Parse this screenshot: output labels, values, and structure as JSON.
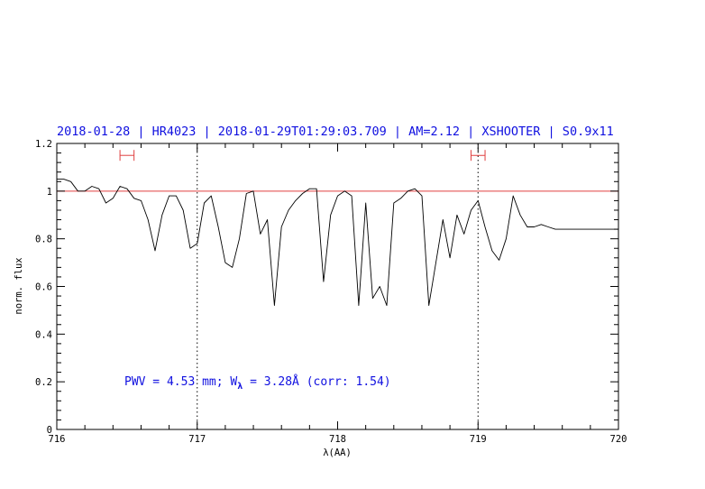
{
  "chart_data": {
    "type": "line",
    "title": "2018-01-28 | HR4023 | 2018-01-29T01:29:03.709 | AM=2.12 | XSHOOTER | S0.9x11",
    "xlabel": "λ(AA)",
    "ylabel": "norm. flux",
    "xlim": [
      716,
      720
    ],
    "ylim": [
      0,
      1.2
    ],
    "x_ticks": [
      716,
      717,
      718,
      719,
      720
    ],
    "y_ticks": [
      0,
      0.2,
      0.4,
      0.6,
      0.8,
      1,
      1.2
    ],
    "x_tick_labels": [
      "716",
      "717",
      "718",
      "719",
      "720"
    ],
    "y_tick_labels": [
      "0",
      "0.2",
      "0.4",
      "0.6",
      "0.8",
      "1",
      "1.2"
    ],
    "grid": false,
    "reference_line": {
      "y": 1.0,
      "color": "#e04040"
    },
    "vertical_markers": [
      717.0,
      719.0
    ],
    "continuum_windows": [
      {
        "x0": 716.45,
        "x1": 716.55,
        "y": 1.15
      },
      {
        "x0": 718.95,
        "x1": 719.05,
        "y": 1.15
      }
    ],
    "annotation": {
      "text_pwv": "PWV = 4.53 mm; W",
      "text_sub": "λ",
      "text_rest": " = 3.28Å (corr: 1.54)"
    },
    "colors": {
      "spectrum": "#000000",
      "title": "#1010e0",
      "windows": "#e04040"
    },
    "series": [
      {
        "x": [
          716.0,
          716.05,
          716.1,
          716.15,
          716.2,
          716.25,
          716.3,
          716.35,
          716.4,
          716.45,
          716.5,
          716.55,
          716.6,
          716.65,
          716.7,
          716.75,
          716.8,
          716.85,
          716.9,
          716.95,
          717.0,
          717.05,
          717.1,
          717.15,
          717.2,
          717.25,
          717.3,
          717.35,
          717.4,
          717.45,
          717.5,
          717.55,
          717.6,
          717.65,
          717.7,
          717.75,
          717.8,
          717.85,
          717.9,
          717.95,
          718.0,
          718.05,
          718.1,
          718.15,
          718.2,
          718.25,
          718.3,
          718.35,
          718.4,
          718.45,
          718.5,
          718.55,
          718.6,
          718.65,
          718.7,
          718.75,
          718.8,
          718.85,
          718.9,
          718.95,
          719.0,
          719.05,
          719.1,
          719.15,
          719.2,
          719.25,
          719.3,
          719.35,
          719.4,
          719.45,
          719.5,
          719.55,
          719.6,
          719.65,
          719.7,
          719.75,
          719.8,
          719.85,
          719.9,
          719.95,
          720.0
        ],
        "y": [
          1.05,
          1.05,
          1.04,
          1.0,
          1.0,
          1.02,
          1.01,
          0.95,
          0.97,
          1.02,
          1.01,
          0.97,
          0.96,
          0.88,
          0.75,
          0.9,
          0.98,
          0.98,
          0.92,
          0.76,
          0.78,
          0.95,
          0.98,
          0.85,
          0.7,
          0.68,
          0.8,
          0.99,
          1.0,
          0.82,
          0.88,
          0.52,
          0.85,
          0.92,
          0.96,
          0.99,
          1.01,
          1.01,
          0.62,
          0.9,
          0.98,
          1.0,
          0.98,
          0.52,
          0.95,
          0.55,
          0.6,
          0.52,
          0.95,
          0.97,
          1.0,
          1.01,
          0.98,
          0.52,
          0.7,
          0.88,
          0.72,
          0.9,
          0.82,
          0.92,
          0.96,
          0.85,
          0.75,
          0.71,
          0.8,
          0.98,
          0.9,
          0.85,
          0.85,
          0.86,
          0.85,
          0.84,
          0.84,
          0.84,
          0.84,
          0.84,
          0.84,
          0.84,
          0.84,
          0.84,
          0.84
        ]
      }
    ]
  }
}
